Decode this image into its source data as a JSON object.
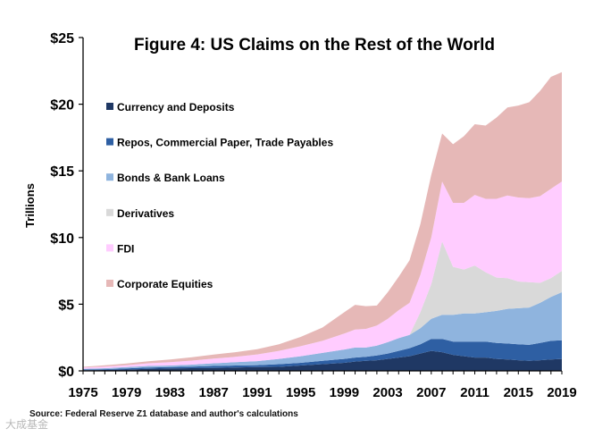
{
  "chart_data": {
    "type": "area",
    "stacked": true,
    "title": "Figure 4: US Claims on the Rest of the World",
    "ylabel": "Trillions",
    "xlabel": "",
    "ylim": [
      0,
      25
    ],
    "xlim": [
      1975,
      2019
    ],
    "yticks": [
      "$0",
      "$5",
      "$10",
      "$15",
      "$20",
      "$25"
    ],
    "xticks": [
      "1975",
      "1979",
      "1983",
      "1987",
      "1991",
      "1995",
      "1999",
      "2003",
      "2007",
      "2011",
      "2015",
      "2019"
    ],
    "grid": false,
    "legend_position": "top-left",
    "x": [
      1975,
      1977,
      1979,
      1981,
      1983,
      1985,
      1987,
      1989,
      1991,
      1993,
      1995,
      1997,
      1999,
      2000,
      2001,
      2002,
      2003,
      2004,
      2005,
      2006,
      2007,
      2008,
      2009,
      2010,
      2011,
      2012,
      2013,
      2014,
      2015,
      2016,
      2017,
      2018,
      2019
    ],
    "series": [
      {
        "name": "Currency and Deposits",
        "color": "#1f3864",
        "values": [
          0.05,
          0.07,
          0.1,
          0.15,
          0.18,
          0.2,
          0.22,
          0.25,
          0.28,
          0.3,
          0.4,
          0.5,
          0.6,
          0.7,
          0.75,
          0.8,
          0.9,
          1.0,
          1.1,
          1.3,
          1.5,
          1.4,
          1.2,
          1.1,
          1.0,
          1.0,
          0.9,
          0.85,
          0.8,
          0.75,
          0.8,
          0.85,
          0.9
        ]
      },
      {
        "name": "Repos, Commercial Paper, Trade Payables",
        "color": "#2e5fa3",
        "values": [
          0.05,
          0.06,
          0.08,
          0.1,
          0.1,
          0.12,
          0.15,
          0.15,
          0.15,
          0.2,
          0.2,
          0.25,
          0.3,
          0.3,
          0.3,
          0.35,
          0.4,
          0.5,
          0.6,
          0.7,
          0.9,
          1.0,
          1.0,
          1.1,
          1.2,
          1.2,
          1.2,
          1.2,
          1.2,
          1.2,
          1.3,
          1.4,
          1.4
        ]
      },
      {
        "name": "Bonds & Bank Loans",
        "color": "#8fb4de",
        "values": [
          0.05,
          0.07,
          0.1,
          0.12,
          0.12,
          0.15,
          0.2,
          0.25,
          0.3,
          0.4,
          0.5,
          0.6,
          0.7,
          0.75,
          0.7,
          0.75,
          0.85,
          0.95,
          1.0,
          1.2,
          1.5,
          1.8,
          2.0,
          2.1,
          2.1,
          2.2,
          2.4,
          2.6,
          2.7,
          2.8,
          3.0,
          3.3,
          3.6
        ]
      },
      {
        "name": "Derivatives",
        "color": "#d9d9d9",
        "values": [
          0,
          0,
          0,
          0,
          0,
          0,
          0,
          0,
          0,
          0,
          0,
          0,
          0,
          0,
          0,
          0,
          0,
          0,
          0,
          1.2,
          2.6,
          5.5,
          3.6,
          3.3,
          3.6,
          3.0,
          2.5,
          2.3,
          2.0,
          1.9,
          1.5,
          1.4,
          1.6
        ]
      },
      {
        "name": "FDI",
        "color": "#ffccff",
        "values": [
          0.1,
          0.12,
          0.15,
          0.2,
          0.25,
          0.3,
          0.35,
          0.4,
          0.5,
          0.6,
          0.75,
          0.9,
          1.2,
          1.35,
          1.4,
          1.5,
          1.75,
          2.1,
          2.4,
          2.8,
          3.5,
          4.5,
          4.8,
          5.0,
          5.3,
          5.5,
          5.9,
          6.2,
          6.3,
          6.3,
          6.5,
          6.7,
          6.7
        ]
      },
      {
        "name": "Corporate Equities",
        "color": "#e6b8b7",
        "values": [
          0.05,
          0.1,
          0.12,
          0.15,
          0.2,
          0.25,
          0.3,
          0.35,
          0.4,
          0.5,
          0.7,
          1.0,
          1.6,
          1.85,
          1.7,
          1.5,
          2.0,
          2.5,
          3.2,
          3.8,
          4.7,
          3.6,
          4.4,
          5.0,
          5.3,
          5.5,
          6.1,
          6.6,
          6.9,
          7.2,
          7.9,
          8.4,
          8.2
        ]
      }
    ]
  },
  "source": "Source: Federal Reserve Z1 database and author's calculations",
  "watermark": "大成基金"
}
